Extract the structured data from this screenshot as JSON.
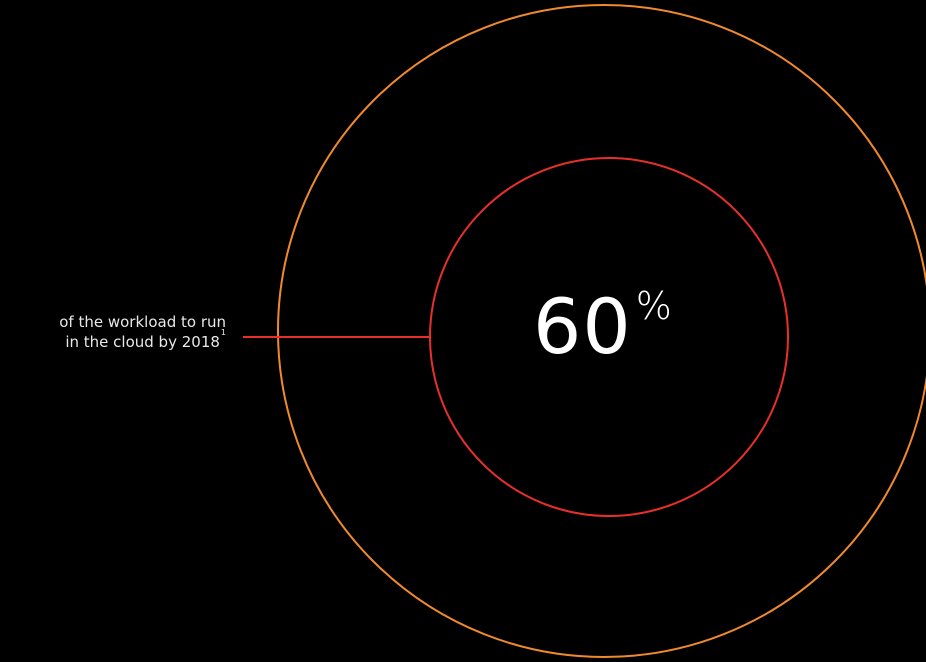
{
  "stat": {
    "value": "60",
    "unit": "%",
    "caption_line1": "of the workload to run",
    "caption_line2": "in the cloud by 2018",
    "footnote_ref": "1"
  },
  "colors": {
    "background": "#000000",
    "outer_ring": "#f08a2c",
    "inner_ring": "#e8302a",
    "text": "#ffffff"
  }
}
